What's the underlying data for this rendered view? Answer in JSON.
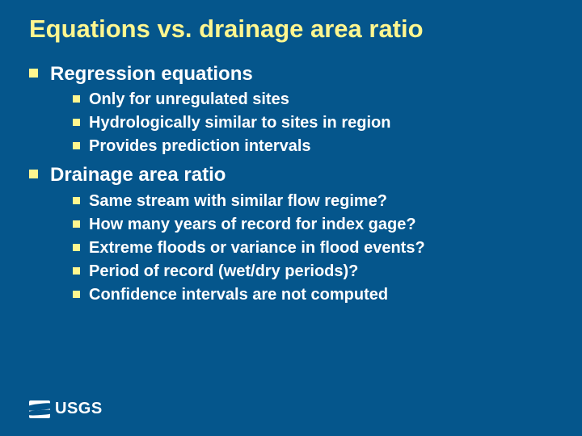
{
  "colors": {
    "background": "#05568c",
    "accent": "#fff68f",
    "text": "#ffffff"
  },
  "title": "Equations vs. drainage area ratio",
  "sections": [
    {
      "heading": "Regression equations",
      "items": [
        "Only for unregulated sites",
        "Hydrologically similar to sites in region",
        "Provides prediction intervals"
      ]
    },
    {
      "heading": "Drainage area ratio",
      "items": [
        "Same stream with similar flow regime?",
        "How many years of record for index gage?",
        "Extreme floods or variance in flood events?",
        "Period of record (wet/dry periods)?",
        "Confidence intervals are not computed"
      ]
    }
  ],
  "logo_text": "USGS"
}
